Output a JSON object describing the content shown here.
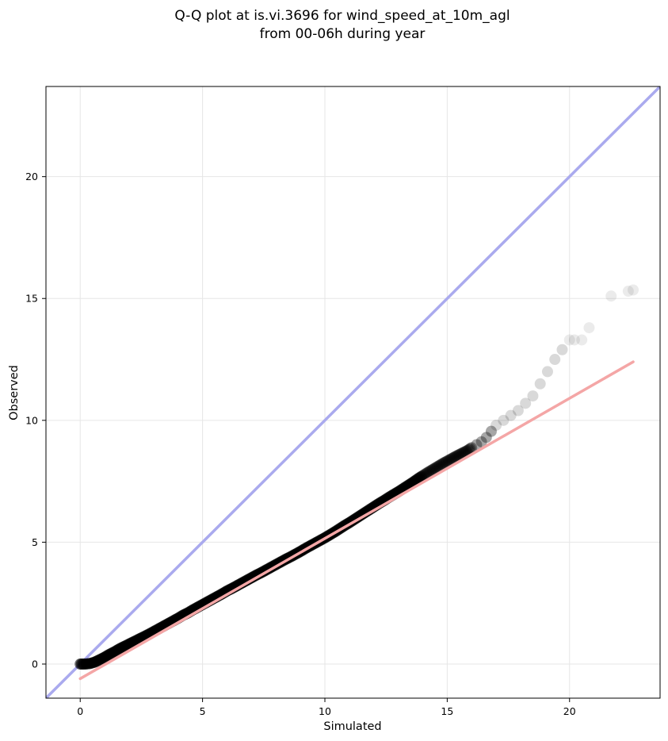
{
  "chart_data": {
    "type": "scatter",
    "title_lines": [
      "Q-Q plot at is.vi.3696 for wind_speed_at_10m_agl",
      "from 00-06h during year"
    ],
    "xlabel": "Simulated",
    "ylabel": "Observed",
    "xlim": [
      -1.4,
      23.7
    ],
    "ylim": [
      -1.4,
      23.7
    ],
    "xticks": [
      0,
      5,
      10,
      15,
      20
    ],
    "yticks": [
      0,
      5,
      10,
      15,
      20
    ],
    "grid": true,
    "reference_line": {
      "name": "1:1",
      "color": "#aaaaee",
      "x": [
        -1.4,
        23.7
      ],
      "y": [
        -1.4,
        23.7
      ]
    },
    "fit_line": {
      "color": "#f4a6a6",
      "x": [
        0.0,
        22.6
      ],
      "y": [
        -0.6,
        12.4
      ]
    },
    "point_color": "#000000",
    "series": [
      {
        "x": [
          0.0,
          0.2,
          0.4,
          0.6,
          0.8,
          1.0,
          1.2,
          1.4,
          1.6,
          1.8,
          2.0,
          2.2,
          2.4,
          2.6,
          2.8,
          3.0,
          3.2,
          3.4,
          3.6,
          3.8,
          4.0,
          4.2,
          4.4,
          4.6,
          4.8,
          5.0,
          5.2,
          5.4,
          5.6,
          5.8,
          6.0,
          6.2,
          6.4,
          6.6,
          6.8,
          7.0,
          7.2,
          7.4,
          7.6,
          7.8,
          8.0,
          8.2,
          8.4,
          8.6,
          8.8,
          9.0,
          9.2,
          9.4,
          9.6,
          9.8,
          10.0,
          10.2,
          10.4,
          10.6,
          10.8,
          11.0,
          11.2,
          11.4,
          11.6,
          11.8,
          12.0,
          12.2,
          12.4,
          12.6,
          12.8,
          13.0,
          13.2,
          13.4,
          13.6,
          13.8,
          14.0,
          14.2,
          14.4,
          14.6,
          14.8,
          15.0,
          15.2,
          15.4,
          15.6,
          15.8,
          16.0,
          16.2,
          16.4,
          16.6,
          16.8,
          17.0,
          17.3,
          17.6,
          17.9,
          18.2,
          18.5,
          18.8,
          19.1,
          19.4,
          19.7,
          20.0,
          20.2,
          20.5,
          20.8,
          21.7,
          22.4,
          22.6
        ],
        "y": [
          0.0,
          0.0,
          0.02,
          0.08,
          0.18,
          0.28,
          0.4,
          0.5,
          0.62,
          0.72,
          0.82,
          0.92,
          1.02,
          1.12,
          1.22,
          1.33,
          1.44,
          1.55,
          1.66,
          1.77,
          1.88,
          2.0,
          2.1,
          2.22,
          2.33,
          2.44,
          2.55,
          2.66,
          2.77,
          2.88,
          3.0,
          3.1,
          3.21,
          3.32,
          3.43,
          3.54,
          3.65,
          3.75,
          3.86,
          3.97,
          4.08,
          4.19,
          4.3,
          4.4,
          4.51,
          4.62,
          4.74,
          4.85,
          4.96,
          5.07,
          5.18,
          5.3,
          5.42,
          5.55,
          5.68,
          5.8,
          5.93,
          6.06,
          6.19,
          6.32,
          6.45,
          6.58,
          6.7,
          6.83,
          6.95,
          7.07,
          7.2,
          7.33,
          7.46,
          7.6,
          7.73,
          7.86,
          7.98,
          8.1,
          8.22,
          8.33,
          8.44,
          8.55,
          8.65,
          8.75,
          8.88,
          9.0,
          9.12,
          9.3,
          9.55,
          9.8,
          10.0,
          10.2,
          10.4,
          10.7,
          11.0,
          11.5,
          12.0,
          12.5,
          12.9,
          13.3,
          13.3,
          13.3,
          13.8,
          15.1,
          15.3,
          15.35
        ]
      }
    ]
  }
}
